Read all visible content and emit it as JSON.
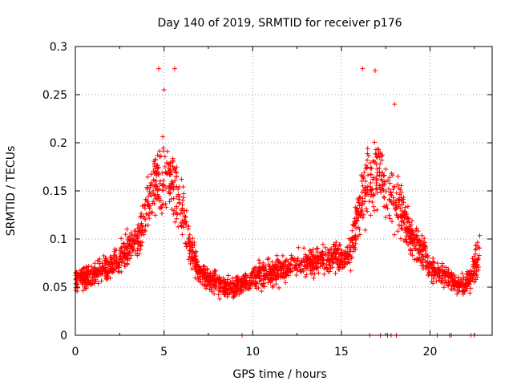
{
  "chart_data": {
    "type": "scatter",
    "title": "Day 140 of 2019, SRMTID for receiver p176",
    "xlabel": "GPS time / hours",
    "ylabel": "SRMTID / TECUs",
    "xlim": [
      0,
      23.5
    ],
    "ylim": [
      0,
      0.3
    ],
    "xticks": [
      0,
      5,
      10,
      15,
      20
    ],
    "xtick_labels": [
      "0",
      "5",
      "10",
      "15",
      "20"
    ],
    "yticks": [
      0,
      0.05,
      0.1,
      0.15,
      0.2,
      0.25,
      0.3
    ],
    "ytick_labels": [
      "0",
      "0.05",
      "0.1",
      "0.15",
      "0.2",
      "0.25",
      "0.3"
    ],
    "grid": true,
    "marker": "+",
    "color": "#ff0000",
    "series": [
      {
        "name": "SRMTID",
        "profile_hours": [
          0,
          0.5,
          1,
          1.5,
          2,
          2.5,
          3,
          3.5,
          4,
          4.5,
          5,
          5.5,
          6,
          6.5,
          7,
          7.5,
          8,
          8.5,
          9,
          9.5,
          10,
          11,
          12,
          13,
          14,
          15,
          15.5,
          16,
          16.5,
          17,
          17.5,
          18,
          18.5,
          19,
          19.5,
          20,
          20.5,
          21,
          21.5,
          22,
          22.5,
          22.8
        ],
        "profile_mean": [
          0.055,
          0.06,
          0.06,
          0.07,
          0.07,
          0.08,
          0.09,
          0.1,
          0.13,
          0.16,
          0.17,
          0.16,
          0.13,
          0.09,
          0.065,
          0.06,
          0.055,
          0.05,
          0.05,
          0.055,
          0.06,
          0.065,
          0.07,
          0.075,
          0.08,
          0.08,
          0.085,
          0.13,
          0.16,
          0.17,
          0.15,
          0.14,
          0.12,
          0.1,
          0.09,
          0.07,
          0.065,
          0.06,
          0.055,
          0.05,
          0.07,
          0.09
        ],
        "profile_spread": [
          0.02,
          0.02,
          0.02,
          0.025,
          0.025,
          0.03,
          0.03,
          0.035,
          0.045,
          0.06,
          0.07,
          0.06,
          0.05,
          0.03,
          0.02,
          0.02,
          0.02,
          0.02,
          0.02,
          0.02,
          0.02,
          0.025,
          0.025,
          0.025,
          0.025,
          0.025,
          0.03,
          0.05,
          0.06,
          0.065,
          0.06,
          0.05,
          0.045,
          0.035,
          0.03,
          0.025,
          0.02,
          0.02,
          0.02,
          0.02,
          0.03,
          0.035
        ],
        "n_points": 2200,
        "x_range": [
          0,
          22.8
        ],
        "peaks": [
          {
            "x": 4.7,
            "y": 0.277
          },
          {
            "x": 5.0,
            "y": 0.255
          },
          {
            "x": 5.6,
            "y": 0.277
          },
          {
            "x": 16.2,
            "y": 0.277
          },
          {
            "x": 16.9,
            "y": 0.275
          },
          {
            "x": 18.0,
            "y": 0.24
          }
        ],
        "zero_points_hours": [
          9.4,
          16.6,
          17.2,
          17.6,
          17.8,
          18.1,
          20.4,
          21.1,
          21.2,
          22.3,
          22.5
        ]
      }
    ]
  }
}
